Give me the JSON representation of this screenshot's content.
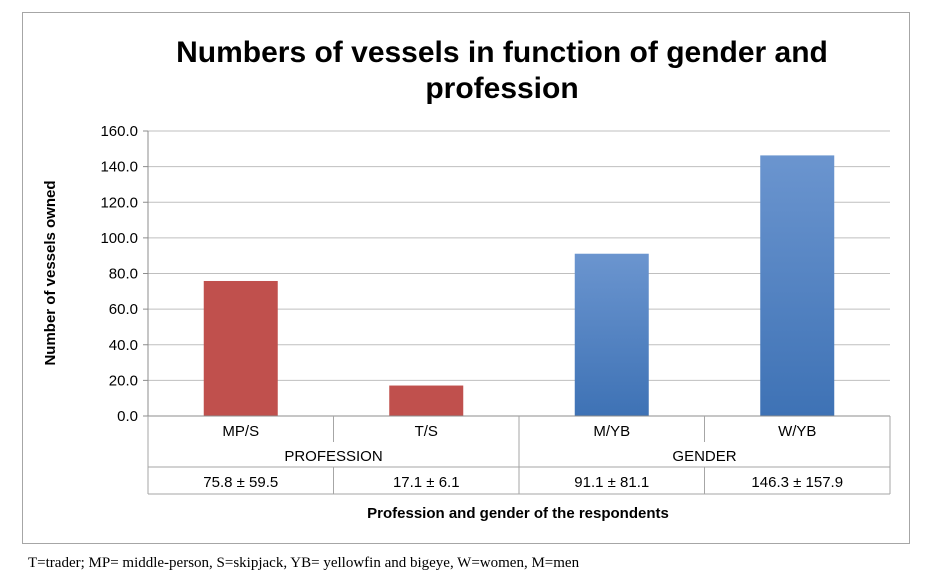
{
  "chart_data": {
    "type": "bar",
    "title": "Numbers of vessels  in function of gender and profession",
    "title_lines": [
      "Numbers of vessels  in function of gender and",
      "profession"
    ],
    "ylabel": "Number of vessels owned",
    "xlabel": "Profession and gender of the respondents",
    "ylim": [
      0,
      160
    ],
    "yticks": [
      "0.0",
      "20.0",
      "40.0",
      "60.0",
      "80.0",
      "100.0",
      "120.0",
      "140.0",
      "160.0"
    ],
    "grid": true,
    "categories": [
      "MP/S",
      "T/S",
      "M/YB",
      "W/YB"
    ],
    "values": [
      75.8,
      17.1,
      91.1,
      146.3
    ],
    "groups": [
      {
        "label": "PROFESSION",
        "categories": [
          "MP/S",
          "T/S"
        ],
        "color": "#c0504d"
      },
      {
        "label": "GENDER",
        "categories": [
          "M/YB",
          "W/YB"
        ],
        "color": "#4f81bd"
      }
    ],
    "table_row": [
      "75.8 ± 59.5",
      "17.1 ± 6.1",
      "91.1 ± 81.1",
      "146.3 ± 157.9"
    ]
  },
  "caption": "T=trader; MP= middle-person, S=skipjack, YB= yellowfin and bigeye, W=women, M=men"
}
